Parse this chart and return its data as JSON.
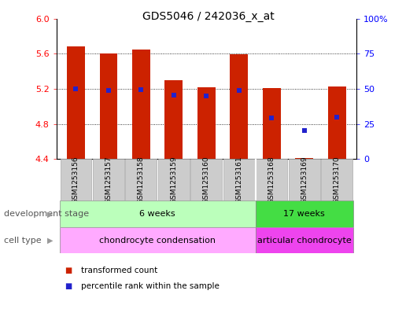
{
  "title": "GDS5046 / 242036_x_at",
  "samples": [
    "GSM1253156",
    "GSM1253157",
    "GSM1253158",
    "GSM1253159",
    "GSM1253160",
    "GSM1253161",
    "GSM1253168",
    "GSM1253169",
    "GSM1253170"
  ],
  "bar_bottoms": [
    4.4,
    4.4,
    4.4,
    4.4,
    4.4,
    4.4,
    4.4,
    4.4,
    4.4
  ],
  "bar_tops": [
    5.68,
    5.6,
    5.65,
    5.3,
    5.22,
    5.59,
    5.21,
    4.41,
    5.23
  ],
  "percentile_values_left": [
    5.2,
    5.18,
    5.19,
    5.13,
    5.12,
    5.18,
    4.87,
    4.73,
    4.88
  ],
  "ylim_left": [
    4.4,
    6.0
  ],
  "ylim_right": [
    0,
    100
  ],
  "yticks_left": [
    4.4,
    4.8,
    5.2,
    5.6,
    6.0
  ],
  "yticks_right": [
    0,
    25,
    50,
    75,
    100
  ],
  "ytick_labels_right": [
    "0",
    "25",
    "50",
    "75",
    "100%"
  ],
  "bar_color": "#cc2200",
  "percentile_color": "#2222cc",
  "dev_stage_groups": [
    {
      "label": "6 weeks",
      "start": 0,
      "end": 6,
      "color": "#bbffbb"
    },
    {
      "label": "17 weeks",
      "start": 6,
      "end": 9,
      "color": "#44dd44"
    }
  ],
  "cell_type_groups": [
    {
      "label": "chondrocyte condensation",
      "start": 0,
      "end": 6,
      "color": "#ffaaff"
    },
    {
      "label": "articular chondrocyte",
      "start": 6,
      "end": 9,
      "color": "#ee44ee"
    }
  ],
  "legend_items": [
    {
      "label": "transformed count",
      "color": "#cc2200"
    },
    {
      "label": "percentile rank within the sample",
      "color": "#2222cc"
    }
  ],
  "dev_stage_label": "development stage",
  "cell_type_label": "cell type",
  "group_separator": 5.5
}
